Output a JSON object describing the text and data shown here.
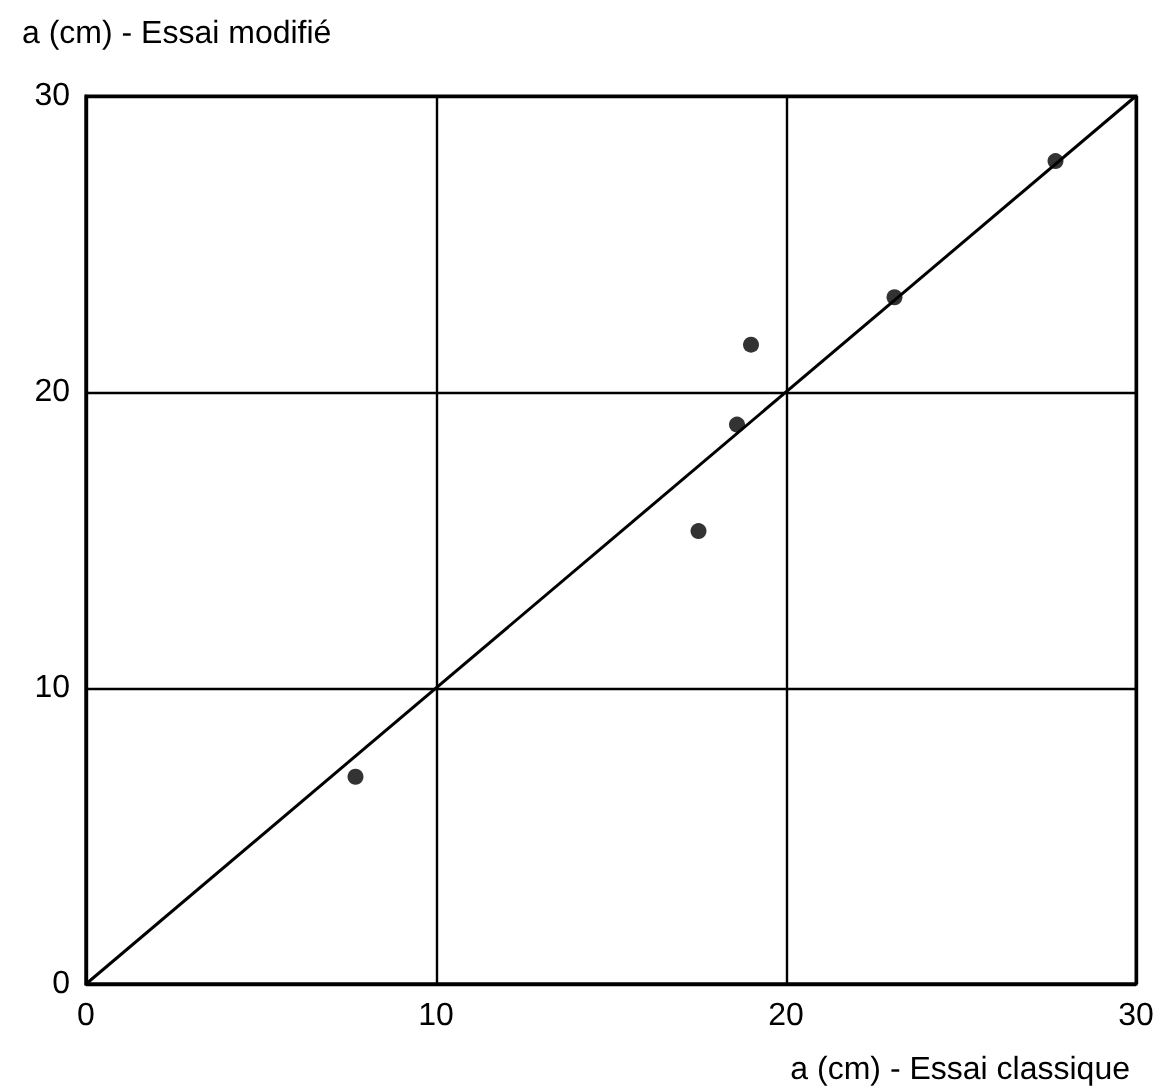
{
  "chart_data": {
    "type": "scatter",
    "xlabel": "a (cm) - Essai classique",
    "ylabel": "a (cm) - Essai modifié",
    "series": [
      {
        "marker": "circle",
        "color": "#000000",
        "x": [
          7.7,
          17.5,
          18.6,
          19.0,
          23.1,
          27.7
        ],
        "values": [
          7.0,
          15.3,
          18.9,
          21.6,
          23.2,
          27.8
        ]
      },
      {
        "type": "line",
        "marker": "none",
        "color": "#000000",
        "x": [
          0,
          30
        ],
        "values": [
          0,
          30
        ]
      }
    ],
    "xlim": [
      0,
      30
    ],
    "ylim": [
      0,
      30
    ],
    "xticks": [
      0,
      10,
      20,
      30
    ],
    "yticks": [
      0,
      10,
      20,
      30
    ],
    "grid": true,
    "line_style": "solid"
  }
}
